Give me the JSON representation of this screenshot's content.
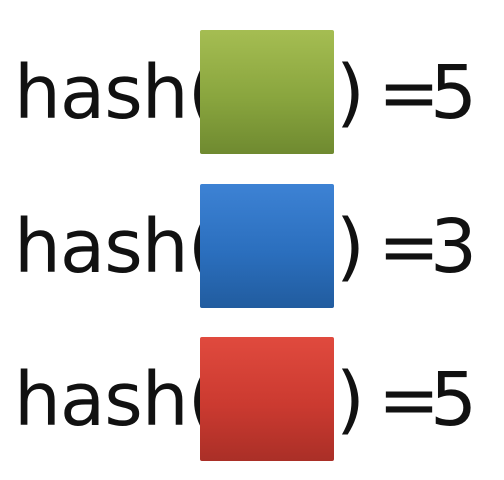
{
  "rows": [
    {
      "prefix": "hash(",
      "suffix": ")",
      "equals": "=",
      "value": "5",
      "swatch": "#89a53e"
    },
    {
      "prefix": "hash(",
      "suffix": ")",
      "equals": "=",
      "value": "3",
      "swatch": "#2b6fbe"
    },
    {
      "prefix": "hash(",
      "suffix": ")",
      "equals": "=",
      "value": "5",
      "swatch": "#cb3a30"
    }
  ]
}
